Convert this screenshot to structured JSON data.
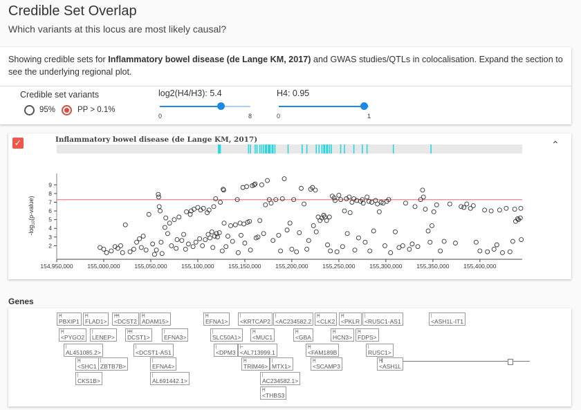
{
  "page": {
    "title": "Credible Set Overlap",
    "subtitle": "Which variants at this locus are most likely causal?"
  },
  "description": {
    "prefix": "Showing credible sets for ",
    "study": "Inflammatory bowel disease (de Lange KM, 2017)",
    "suffix": " and GWAS studies/QTLs in colocalisation. Expand the section to see the underlying regional plot."
  },
  "controls": {
    "credible_set": {
      "label": "Credible set variants",
      "options": [
        {
          "label": "95%",
          "selected": false
        },
        {
          "label": "PP > 0.1%",
          "selected": true
        }
      ]
    },
    "log2": {
      "label": "log2(H4/H3): 5.4",
      "value": 5.4,
      "min": 0,
      "max": 8,
      "min_label": "0",
      "max_label": "8"
    },
    "h4": {
      "label": "H4: 0.95",
      "value": 0.95,
      "min": 0,
      "max": 1,
      "min_label": "0",
      "max_label": "1"
    }
  },
  "plot": {
    "title": "Inflammatory bowel disease (de Lange KM, 2017)",
    "checkbox_icon": "check-icon",
    "collapse_icon": "chevron-up-icon",
    "accent": "#f0564a",
    "stripe_color": "#26d7e0",
    "threshold_color": "#f08080"
  },
  "chart_data": {
    "type": "scatter",
    "title": "Inflammatory bowel disease (de Lange KM, 2017)",
    "xlabel": "",
    "ylabel": "-log10(p-value)",
    "ylabel_main": "-log",
    "ylabel_sub": "10",
    "ylabel_tail": "(p-value)",
    "xlim": [
      154950000,
      155445000
    ],
    "ylim": [
      0.6,
      10.3
    ],
    "x_ticks": [
      154950000,
      155000000,
      155050000,
      155100000,
      155150000,
      155200000,
      155250000,
      155300000,
      155350000,
      155400000
    ],
    "x_tick_labels": [
      "154,950,000",
      "155,000,000",
      "155,050,000",
      "155,100,000",
      "155,150,000",
      "155,200,000",
      "155,250,000",
      "155,300,000",
      "155,350,000",
      "155,400,000"
    ],
    "y_ticks": [
      2,
      3,
      4,
      5,
      6,
      7,
      8,
      9
    ],
    "y_tick_labels": [
      "2",
      "3",
      "4",
      "5",
      "6",
      "7",
      "8",
      "9"
    ],
    "threshold": 7.3,
    "credible_set_positions": [
      155122000,
      155123000,
      155124000,
      155154000,
      155156000,
      155161000,
      155163000,
      155166000,
      155168000,
      155170000,
      155172000,
      155173000,
      155175000,
      155176000,
      155177000,
      155179000,
      155180000,
      155182000,
      155196000,
      155211000,
      155216000,
      155226000,
      155229000,
      155232000,
      155234000,
      155235000,
      155237000,
      155238000,
      155240000,
      155242000,
      155252000,
      155256000,
      155266000,
      155275000,
      155280000,
      155308000,
      155348000
    ],
    "points": [
      [
        154996000,
        1.8
      ],
      [
        155000000,
        1.6
      ],
      [
        155003000,
        1.2
      ],
      [
        155008000,
        1.4
      ],
      [
        155012000,
        1.9
      ],
      [
        155015000,
        1.7
      ],
      [
        155018000,
        2.0
      ],
      [
        155020000,
        1.2
      ],
      [
        155023000,
        4.4
      ],
      [
        155028000,
        1.3
      ],
      [
        155032000,
        1.6
      ],
      [
        155035000,
        2.4
      ],
      [
        155038000,
        2.8
      ],
      [
        155040000,
        1.8
      ],
      [
        155042000,
        3.1
      ],
      [
        155045000,
        1.5
      ],
      [
        155048000,
        5.6
      ],
      [
        155052000,
        2.2
      ],
      [
        155054000,
        1.0
      ],
      [
        155056000,
        1.5
      ],
      [
        155058000,
        7.9
      ],
      [
        155058500,
        7.6
      ],
      [
        155059000,
        6.5
      ],
      [
        155060000,
        6.0
      ],
      [
        155061000,
        2.4
      ],
      [
        155062000,
        1.1
      ],
      [
        155065000,
        4.1
      ],
      [
        155066000,
        5.2
      ],
      [
        155068000,
        3.4
      ],
      [
        155070000,
        4.6
      ],
      [
        155072000,
        2.0
      ],
      [
        155075000,
        5.0
      ],
      [
        155077000,
        1.7
      ],
      [
        155078000,
        2.7
      ],
      [
        155080000,
        5.3
      ],
      [
        155083000,
        2.6
      ],
      [
        155085000,
        3.3
      ],
      [
        155087000,
        1.6
      ],
      [
        155088000,
        5.9
      ],
      [
        155090000,
        2.2
      ],
      [
        155092000,
        5.6
      ],
      [
        155093000,
        6.0
      ],
      [
        155095000,
        1.9
      ],
      [
        155096000,
        6.2
      ],
      [
        155098000,
        2.4
      ],
      [
        155100000,
        6.4
      ],
      [
        155102000,
        2.8
      ],
      [
        155103000,
        6.1
      ],
      [
        155105000,
        2.0
      ],
      [
        155106000,
        6.3
      ],
      [
        155108000,
        2.7
      ],
      [
        155110000,
        5.8
      ],
      [
        155111000,
        3.3
      ],
      [
        155112000,
        6.1
      ],
      [
        155113000,
        2.9
      ],
      [
        155115000,
        3.6
      ],
      [
        155116000,
        1.8
      ],
      [
        155117000,
        6.5
      ],
      [
        155118000,
        3.1
      ],
      [
        155119000,
        7.4
      ],
      [
        155120000,
        3.4
      ],
      [
        155121000,
        3.0
      ],
      [
        155123000,
        3.5
      ],
      [
        155124000,
        7.0
      ],
      [
        155126000,
        1.4
      ],
      [
        155127000,
        8.5
      ],
      [
        155127500,
        8.4
      ],
      [
        155128000,
        4.6
      ],
      [
        155130000,
        1.9
      ],
      [
        155132000,
        3.1
      ],
      [
        155135000,
        4.3
      ],
      [
        155137000,
        2.5
      ],
      [
        155140000,
        4.4
      ],
      [
        155142000,
        7.3
      ],
      [
        155143000,
        1.2
      ],
      [
        155145000,
        4.6
      ],
      [
        155146000,
        3.2
      ],
      [
        155148000,
        8.7
      ],
      [
        155149000,
        4.5
      ],
      [
        155150000,
        2.3
      ],
      [
        155152000,
        8.8
      ],
      [
        155153000,
        4.7
      ],
      [
        155155000,
        4.8
      ],
      [
        155156000,
        1.5
      ],
      [
        155158000,
        8.9
      ],
      [
        155160000,
        9.0
      ],
      [
        155161000,
        9.1
      ],
      [
        155162000,
        2.9
      ],
      [
        155164000,
        3.0
      ],
      [
        155166000,
        4.9
      ],
      [
        155168000,
        9.0
      ],
      [
        155170000,
        3.4
      ],
      [
        155172000,
        6.7
      ],
      [
        155174000,
        9.5
      ],
      [
        155176000,
        7.3
      ],
      [
        155178000,
        6.9
      ],
      [
        155180000,
        2.6
      ],
      [
        155183000,
        7.3
      ],
      [
        155186000,
        3.2
      ],
      [
        155188000,
        1.4
      ],
      [
        155190000,
        7.4
      ],
      [
        155192000,
        9.7
      ],
      [
        155195000,
        3.8
      ],
      [
        155198000,
        4.6
      ],
      [
        155200000,
        1.6
      ],
      [
        155202000,
        7.3
      ],
      [
        155205000,
        1.3
      ],
      [
        155208000,
        3.5
      ],
      [
        155210000,
        8.6
      ],
      [
        155213000,
        6.8
      ],
      [
        155216000,
        1.6
      ],
      [
        155218000,
        2.6
      ],
      [
        155220000,
        8.5
      ],
      [
        155222000,
        8.7
      ],
      [
        155223000,
        4.3
      ],
      [
        155225000,
        8.4
      ],
      [
        155226000,
        3.6
      ],
      [
        155228000,
        5.3
      ],
      [
        155230000,
        4.9
      ],
      [
        155232000,
        5.2
      ],
      [
        155234000,
        5.5
      ],
      [
        155235000,
        5.3
      ],
      [
        155237000,
        4.9
      ],
      [
        155238000,
        2.1
      ],
      [
        155240000,
        5.3
      ],
      [
        155241000,
        1.4
      ],
      [
        155243000,
        7.7
      ],
      [
        155245000,
        7.5
      ],
      [
        155246000,
        7.2
      ],
      [
        155248000,
        1.3
      ],
      [
        155250000,
        7.8
      ],
      [
        155252000,
        7.3
      ],
      [
        155254000,
        1.9
      ],
      [
        155256000,
        6.0
      ],
      [
        155258000,
        7.4
      ],
      [
        155259000,
        3.4
      ],
      [
        155261000,
        7.6
      ],
      [
        155262000,
        5.8
      ],
      [
        155264000,
        7.0
      ],
      [
        155266000,
        7.4
      ],
      [
        155267000,
        1.5
      ],
      [
        155269000,
        7.2
      ],
      [
        155271000,
        2.9
      ],
      [
        155273000,
        7.1
      ],
      [
        155275000,
        7.3
      ],
      [
        155276000,
        6.9
      ],
      [
        155278000,
        2.4
      ],
      [
        155280000,
        7.6
      ],
      [
        155282000,
        7.1
      ],
      [
        155283000,
        1.4
      ],
      [
        155285000,
        7.0
      ],
      [
        155287000,
        3.7
      ],
      [
        155289000,
        7.2
      ],
      [
        155291000,
        6.8
      ],
      [
        155293000,
        5.9
      ],
      [
        155295000,
        7.0
      ],
      [
        155297000,
        6.9
      ],
      [
        155299000,
        2.0
      ],
      [
        155301000,
        7.1
      ],
      [
        155303000,
        7.3
      ],
      [
        155305000,
        1.2
      ],
      [
        155310000,
        3.6
      ],
      [
        155314000,
        1.8
      ],
      [
        155318000,
        2.0
      ],
      [
        155321000,
        6.9
      ],
      [
        155325000,
        1.6
      ],
      [
        155328000,
        2.2
      ],
      [
        155331000,
        6.5
      ],
      [
        155334000,
        1.9
      ],
      [
        155337000,
        7.3
      ],
      [
        155339000,
        8.4
      ],
      [
        155340000,
        7.6
      ],
      [
        155342000,
        6.2
      ],
      [
        155345000,
        3.7
      ],
      [
        155347000,
        2.4
      ],
      [
        155349000,
        4.3
      ],
      [
        155351000,
        5.9
      ],
      [
        155354000,
        6.7
      ],
      [
        155358000,
        1.4
      ],
      [
        155362000,
        2.5
      ],
      [
        155368000,
        6.8
      ],
      [
        155374000,
        2.3
      ],
      [
        155380000,
        6.5
      ],
      [
        155383000,
        6.4
      ],
      [
        155386000,
        6.8
      ],
      [
        155390000,
        6.3
      ],
      [
        155393000,
        6.6
      ],
      [
        155396000,
        2.4
      ],
      [
        155400000,
        1.4
      ],
      [
        155405000,
        6.1
      ],
      [
        155408000,
        1.3
      ],
      [
        155412000,
        6.0
      ],
      [
        155415000,
        1.6
      ],
      [
        155418000,
        2.1
      ],
      [
        155421000,
        6.1
      ],
      [
        155424000,
        1.2
      ],
      [
        155428000,
        6.3
      ],
      [
        155432000,
        1.3
      ],
      [
        155435000,
        2.5
      ],
      [
        155437000,
        6.2
      ],
      [
        155438000,
        4.8
      ],
      [
        155440000,
        5.1
      ],
      [
        155441000,
        5.0
      ],
      [
        155443000,
        5.2
      ],
      [
        155443500,
        6.3
      ],
      [
        155444000,
        2.7
      ]
    ]
  },
  "genes": {
    "title": "Genes",
    "items": [
      {
        "name": "PBXIP1",
        "mark": "|=|"
      },
      {
        "name": "FLAD1>",
        "mark": "|=|"
      },
      {
        "name": "<DCST2",
        "mark": "|=|=|"
      },
      {
        "name": "ADAM15>",
        "mark": "|=|"
      },
      {
        "name": "<PYGO2",
        "mark": "|=|"
      },
      {
        "name": "LENEP>",
        "mark": "|"
      },
      {
        "name": "DCST1>",
        "mark": "|=|=|"
      },
      {
        "name": "EFNA3>",
        "mark": "|"
      },
      {
        "name": "AL451085.2>",
        "mark": "|"
      },
      {
        "name": "<DCST1-AS1",
        "mark": "|"
      },
      {
        "name": "<SHC1",
        "mark": "|=|"
      },
      {
        "name": "ZBTB7B>",
        "mark": "|"
      },
      {
        "name": "EFNA4>",
        "mark": "|"
      },
      {
        "name": "CKS1B>",
        "mark": "|"
      },
      {
        "name": "AL691442.1>",
        "mark": "|"
      },
      {
        "name": "EFNA1>",
        "mark": "|=|"
      },
      {
        "name": "<KRTCAP2",
        "mark": "|"
      },
      {
        "name": "<AC234582.2",
        "mark": "|"
      },
      {
        "name": "<CLK2",
        "mark": "|=|"
      },
      {
        "name": "<PKLR",
        "mark": "|=|"
      },
      {
        "name": "<RUSC1-AS1",
        "mark": "|"
      },
      {
        "name": "<ASH1L-IT1",
        "mark": "|"
      },
      {
        "name": "SLC50A1>",
        "mark": "|"
      },
      {
        "name": "<MUC1",
        "mark": "|=|"
      },
      {
        "name": "<GBA",
        "mark": "|=|"
      },
      {
        "name": "HCN3>",
        "mark": "|=|"
      },
      {
        "name": "FDPS>",
        "mark": "|=|"
      },
      {
        "name": "<DPM3",
        "mark": "|"
      },
      {
        "name": "<AL713999.1",
        "mark": "|---"
      },
      {
        "name": "<FAM189B",
        "mark": "|=|"
      },
      {
        "name": "RUSC1>",
        "mark": "|"
      },
      {
        "name": "TRIM46>",
        "mark": "|=|"
      },
      {
        "name": "MTX1>",
        "mark": "|"
      },
      {
        "name": "<SCAMP3",
        "mark": "|=|"
      },
      {
        "name": "<ASH1L",
        "mark": "|=|||"
      },
      {
        "name": "AC234582.1>",
        "mark": "|"
      },
      {
        "name": "<THBS3",
        "mark": "|=|"
      }
    ]
  }
}
